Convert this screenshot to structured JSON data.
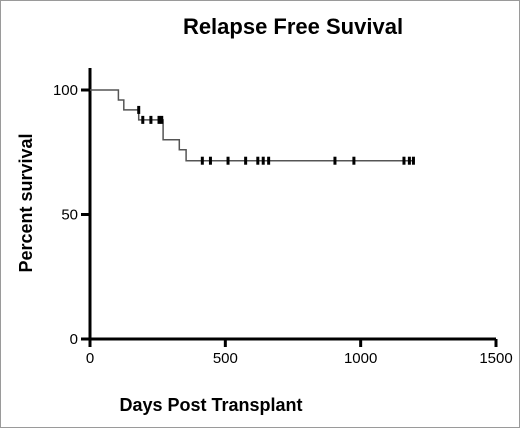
{
  "chart_data": {
    "type": "line",
    "title": "Relapse Free Suvival",
    "xlabel": "Days Post Transplant",
    "ylabel": "Percent survival",
    "xlim": [
      0,
      1500
    ],
    "ylim": [
      0,
      100
    ],
    "xticks": [
      0,
      500,
      1000,
      1500
    ],
    "yticks": [
      0,
      50,
      100
    ],
    "grid": false,
    "series": [
      {
        "step": [
          [
            0,
            100
          ],
          [
            105,
            100
          ],
          [
            105,
            96
          ],
          [
            125,
            96
          ],
          [
            125,
            92
          ],
          [
            180,
            92
          ],
          [
            180,
            88
          ],
          [
            270,
            88
          ],
          [
            270,
            80
          ],
          [
            330,
            80
          ],
          [
            330,
            76
          ],
          [
            355,
            76
          ],
          [
            355,
            71.6
          ],
          [
            1200,
            71.6
          ]
        ],
        "censored": [
          [
            180,
            92
          ],
          [
            195,
            88
          ],
          [
            225,
            88
          ],
          [
            255,
            88
          ],
          [
            265,
            88
          ],
          [
            415,
            71.6
          ],
          [
            445,
            71.6
          ],
          [
            510,
            71.6
          ],
          [
            575,
            71.6
          ],
          [
            620,
            71.6
          ],
          [
            640,
            71.6
          ],
          [
            660,
            71.6
          ],
          [
            905,
            71.6
          ],
          [
            975,
            71.6
          ],
          [
            1160,
            71.6
          ],
          [
            1180,
            71.6
          ],
          [
            1195,
            71.6
          ]
        ],
        "color": "#555555"
      }
    ]
  }
}
